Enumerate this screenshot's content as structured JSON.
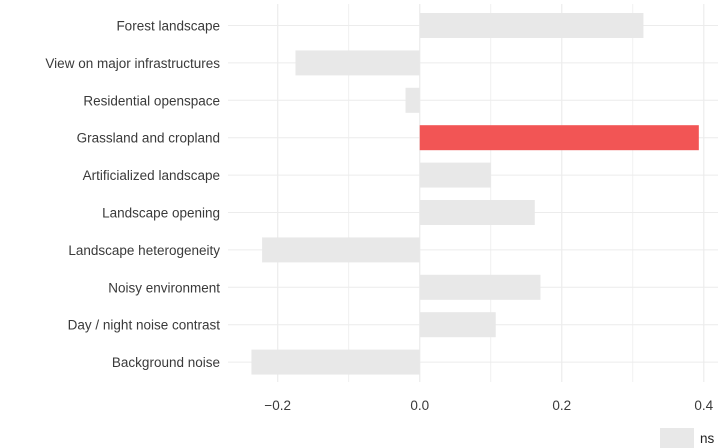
{
  "chart_data": {
    "type": "bar",
    "orientation": "horizontal",
    "categories": [
      "Forest landscape",
      "View on major infrastructures",
      "Residential openspace",
      "Grassland and cropland",
      "Artificialized landscape",
      "Landscape opening",
      "Landscape heterogeneity",
      "Noisy environment",
      "Day / night noise contrast",
      "Background noise"
    ],
    "values": [
      0.315,
      -0.175,
      -0.02,
      0.393,
      0.1,
      0.162,
      -0.222,
      0.17,
      0.107,
      -0.237
    ],
    "significant": [
      false,
      false,
      false,
      true,
      false,
      false,
      false,
      false,
      false,
      false
    ],
    "xlim": [
      -0.27,
      0.42
    ],
    "xticks": [
      -0.2,
      0.0,
      0.2,
      0.4
    ],
    "xtick_labels": [
      "−0.2",
      "0.0",
      "0.2",
      "0.4"
    ],
    "grid": true,
    "legend": {
      "placement": "bottom-right",
      "entries": [
        {
          "label": "ns",
          "color": "#e8e8e8"
        }
      ]
    },
    "colors": {
      "ns": "#e8e8e8",
      "significant": "#f25555",
      "grid": "#ececec"
    }
  }
}
